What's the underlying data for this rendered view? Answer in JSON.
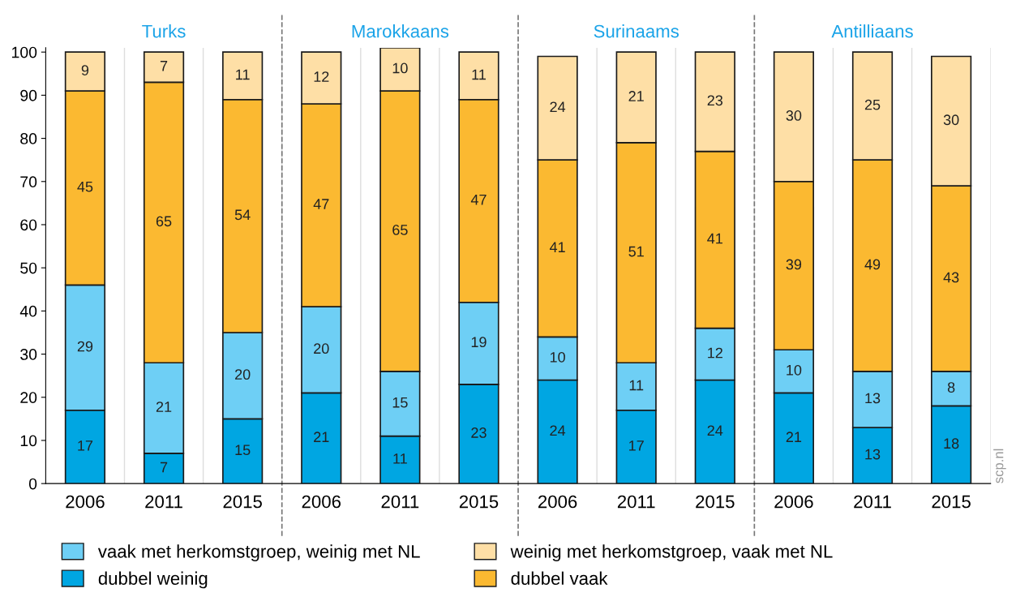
{
  "chart_data": {
    "type": "bar",
    "stacked": true,
    "categories": [
      "2006",
      "2011",
      "2015",
      "2006",
      "2011",
      "2015",
      "2006",
      "2011",
      "2015",
      "2006",
      "2011",
      "2015"
    ],
    "series": [
      {
        "name": "dubbel weinig",
        "color": "#00a6e2",
        "values": [
          17,
          7,
          15,
          21,
          11,
          23,
          24,
          17,
          24,
          21,
          13,
          18
        ]
      },
      {
        "name": "vaak met herkomstgroep, weinig met NL",
        "color": "#6ecff5",
        "values": [
          29,
          21,
          20,
          20,
          15,
          19,
          10,
          11,
          12,
          10,
          13,
          8
        ]
      },
      {
        "name": "dubbel vaak",
        "color": "#fbb931",
        "values": [
          45,
          65,
          54,
          47,
          65,
          47,
          41,
          51,
          41,
          39,
          49,
          43
        ]
      },
      {
        "name": "weinig met herkomstgroep, vaak met NL",
        "color": "#fedfa6",
        "values": [
          9,
          7,
          11,
          12,
          10,
          11,
          24,
          21,
          23,
          30,
          25,
          30
        ]
      }
    ],
    "annotations": [
      "Turks",
      "Marokkaans",
      "Surinaams",
      "Antilliaans",
      "scp.nl"
    ],
    "ylim": [
      0,
      101
    ],
    "yticks": [
      0,
      10,
      20,
      30,
      40,
      50,
      60,
      70,
      80,
      90,
      100
    ],
    "data_labels": true,
    "legend": "bottom"
  }
}
